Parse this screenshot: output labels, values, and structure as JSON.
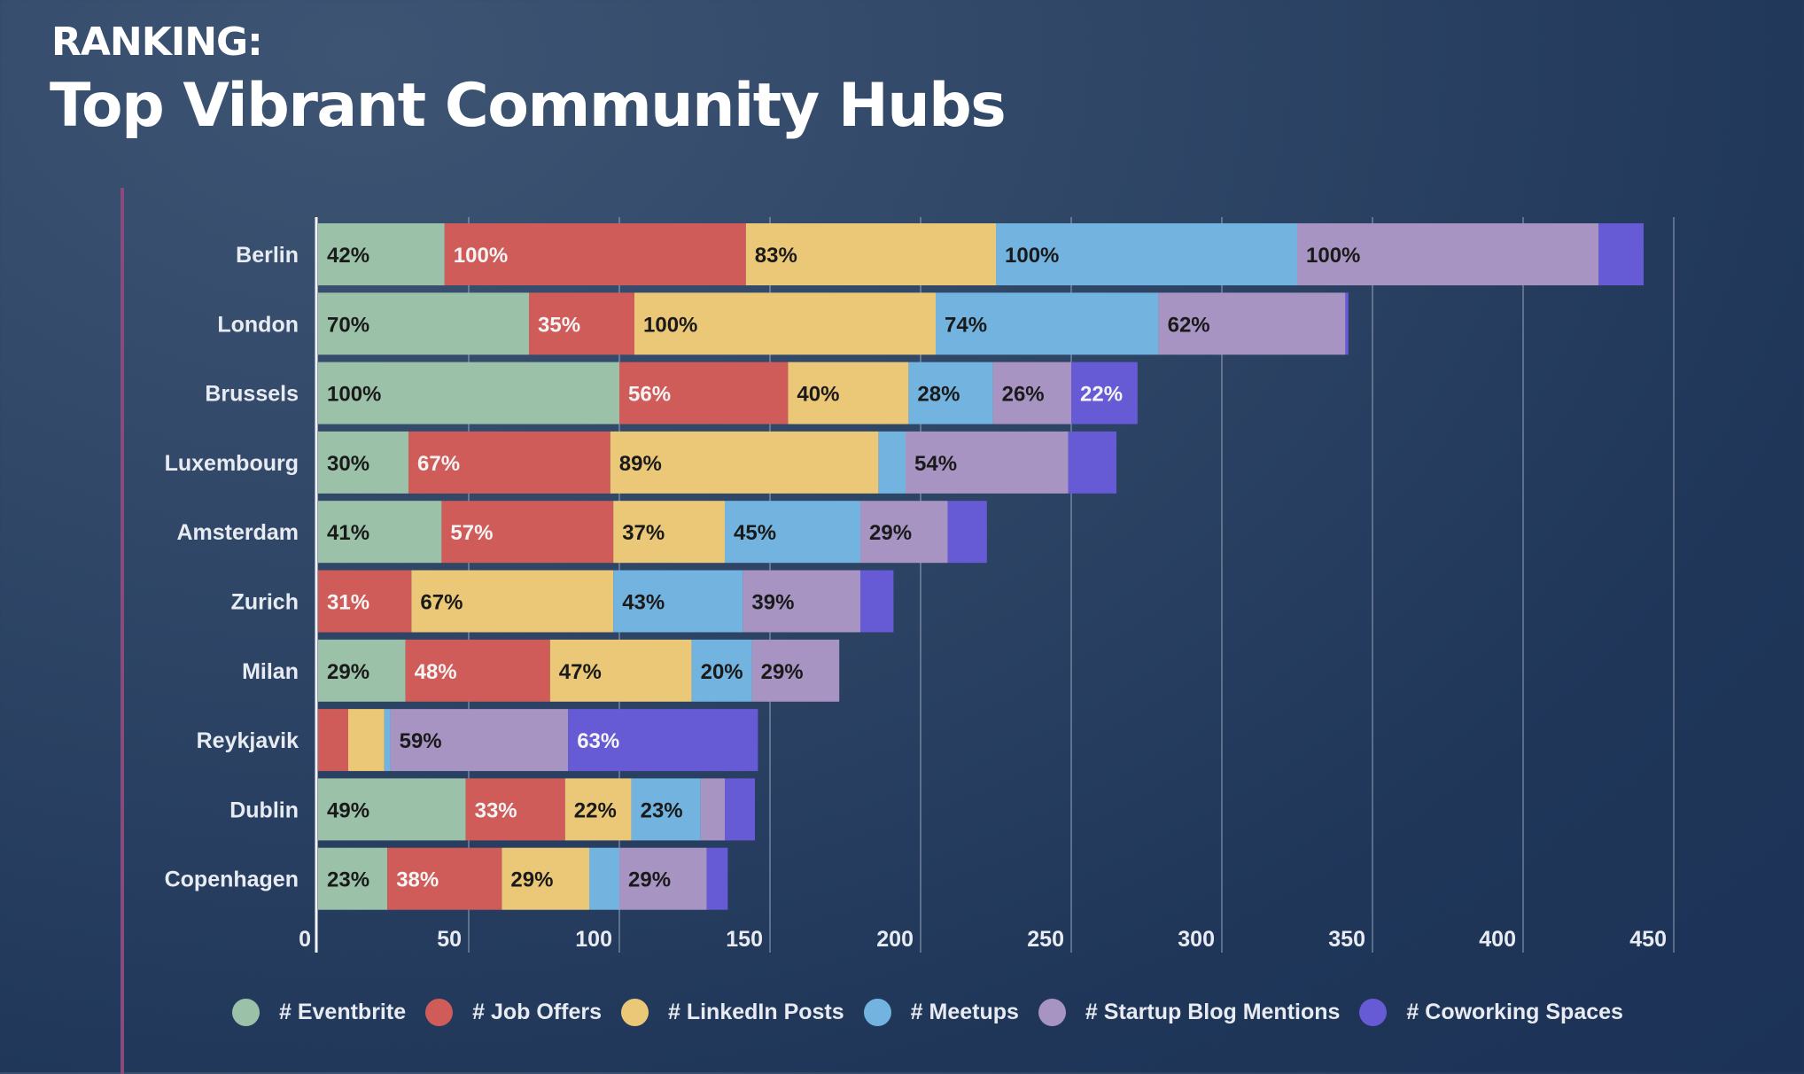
{
  "header": {
    "kicker": "RANKING:",
    "title": "Top Vibrant Community Hubs"
  },
  "chart_data": {
    "type": "bar",
    "orientation": "horizontal",
    "stacked": true,
    "title": "Top Vibrant Community Hubs",
    "xlabel": "",
    "ylabel": "",
    "xlim": [
      0,
      450
    ],
    "xticks": [
      0,
      50,
      100,
      150,
      200,
      250,
      300,
      350,
      400,
      450
    ],
    "grid": true,
    "legend_position": "bottom",
    "categories": [
      "Berlin",
      "London",
      "Brussels",
      "Luxembourg",
      "Amsterdam",
      "Zurich",
      "Milan",
      "Reykjavik",
      "Dublin",
      "Copenhagen"
    ],
    "series": [
      {
        "name": "# Eventbrite",
        "color": "#9bc2a8",
        "label_color": "#1a1a1a",
        "values": [
          42,
          70,
          100,
          30,
          41,
          0,
          29,
          0,
          49,
          23
        ],
        "labels": [
          "42%",
          "70%",
          "100%",
          "30%",
          "41%",
          "",
          "29%",
          "",
          "49%",
          "23%"
        ]
      },
      {
        "name": "# Job Offers",
        "color": "#d05c5a",
        "label_color": "#f4f4f4",
        "values": [
          100,
          35,
          56,
          67,
          57,
          31,
          48,
          10,
          33,
          38
        ],
        "labels": [
          "100%",
          "35%",
          "56%",
          "67%",
          "57%",
          "31%",
          "48%",
          "",
          "33%",
          "38%"
        ]
      },
      {
        "name": "# LinkedIn Posts",
        "color": "#ebc877",
        "label_color": "#1a1a1a",
        "values": [
          83,
          100,
          40,
          89,
          37,
          67,
          47,
          12,
          22,
          29
        ],
        "labels": [
          "83%",
          "100%",
          "40%",
          "89%",
          "37%",
          "67%",
          "47%",
          "",
          "22%",
          "29%"
        ]
      },
      {
        "name": "# Meetups",
        "color": "#72b4df",
        "label_color": "#1a1a1a",
        "values": [
          100,
          74,
          28,
          9,
          45,
          43,
          20,
          2,
          23,
          10
        ],
        "labels": [
          "100%",
          "74%",
          "28%",
          "",
          "45%",
          "43%",
          "20%",
          "",
          "23%",
          ""
        ]
      },
      {
        "name": "# Startup Blog Mentions",
        "color": "#a794c2",
        "label_color": "#1a1a1a",
        "values": [
          100,
          62,
          26,
          54,
          29,
          39,
          29,
          59,
          8,
          29
        ],
        "labels": [
          "100%",
          "62%",
          "26%",
          "54%",
          "29%",
          "39%",
          "29%",
          "59%",
          "",
          "29%"
        ]
      },
      {
        "name": "# Coworking Spaces",
        "color": "#665bd4",
        "label_color": "#f4f4f4",
        "values": [
          15,
          1,
          22,
          16,
          13,
          11,
          0,
          63,
          10,
          7
        ],
        "labels": [
          "",
          "",
          "22%",
          "",
          "",
          "",
          "",
          "63%",
          "",
          ""
        ]
      }
    ]
  },
  "legend": {
    "items": [
      {
        "label": "# Eventbrite",
        "color": "#9bc2a8"
      },
      {
        "label": "# Job Offers",
        "color": "#d05c5a"
      },
      {
        "label": "# LinkedIn Posts",
        "color": "#ebc877"
      },
      {
        "label": "# Meetups",
        "color": "#72b4df"
      },
      {
        "label": "# Startup Blog Mentions",
        "color": "#a794c2"
      },
      {
        "label": "# Coworking Spaces",
        "color": "#665bd4"
      }
    ]
  }
}
